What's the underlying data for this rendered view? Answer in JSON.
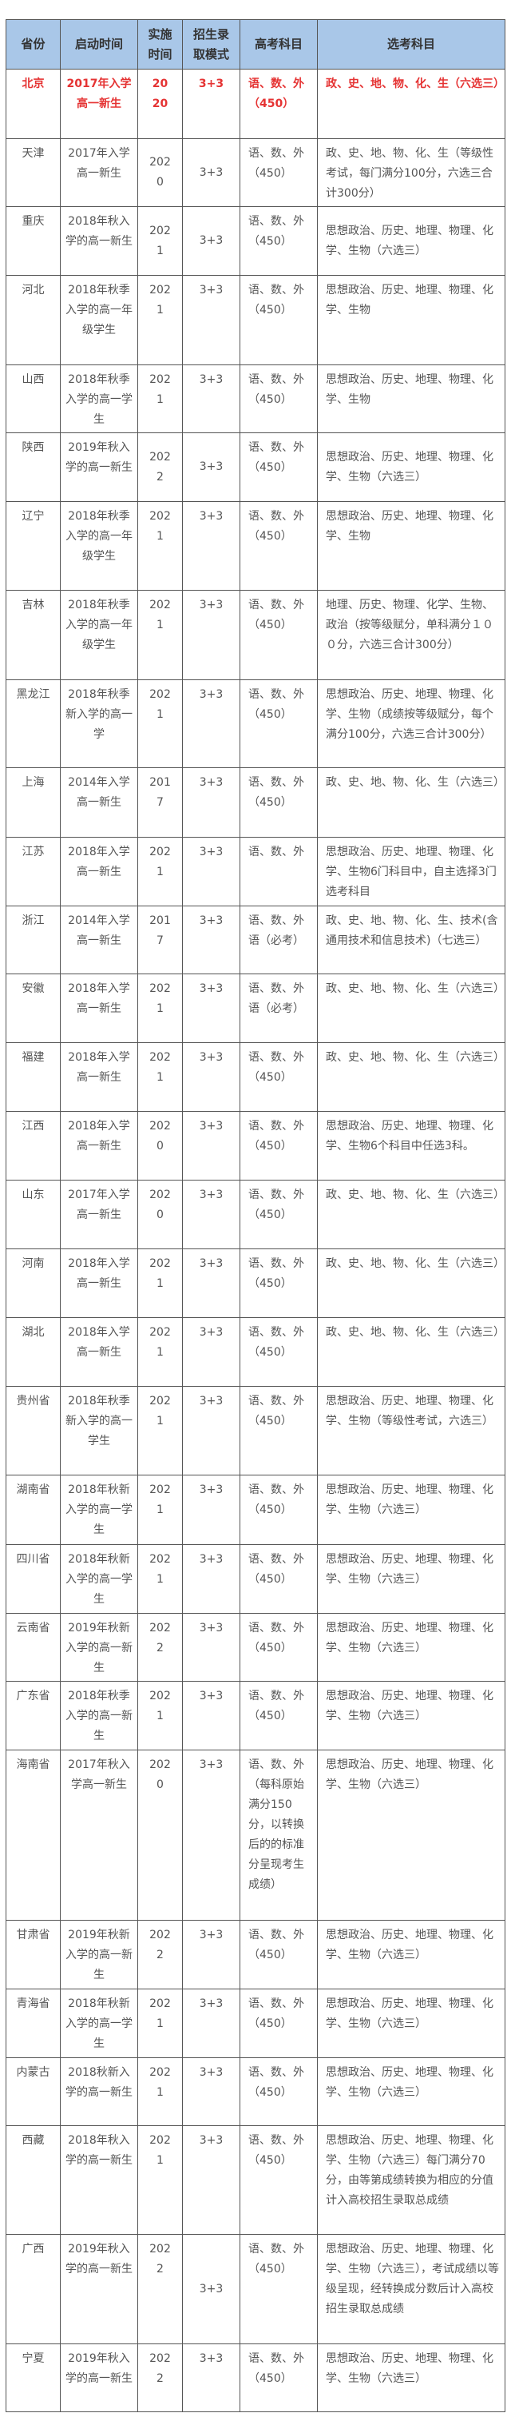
{
  "colors": {
    "header_bg": "#a9c7e8",
    "highlight": "#e53333",
    "border": "#555555"
  },
  "headers": [
    "省份",
    "启动时间",
    "实施时间",
    "招生录取模式",
    "高考科目",
    "选考科目"
  ],
  "rows": [
    [
      "北京",
      "2017年入学高一新生",
      "2020",
      "3+3",
      "语、数、外（450）",
      "政、史、地、物、化、生（六选三）"
    ],
    [
      "天津",
      "2017年入学高一新生",
      "2020",
      "3+3",
      "语、数、外（450）",
      "政、史、地、物、化、生（等级性考试，每门满分100分，六选三合计300分）"
    ],
    [
      "重庆",
      "2018年秋入学的高一新生",
      "2021",
      "3+3",
      "语、数、外（450）",
      "思想政治、历史、地理、物理、化学、生物（六选三）"
    ],
    [
      "河北",
      "2018年秋季入学的高一年级学生",
      "2021",
      "3+3",
      "语、数、外（450）",
      "思想政治、历史、地理、物理、化学、生物"
    ],
    [
      "山西",
      "2018年秋季入学的高一学生",
      "2021",
      "3+3",
      "语、数、外（450）",
      "思想政治、历史、地理、物理、化学、生物"
    ],
    [
      "陕西",
      "2019年秋入学的高一新生",
      "2022",
      "3+3",
      "语、数、外（450）",
      "思想政治、历史、地理、物理、化学、生物（六选三）"
    ],
    [
      "辽宁",
      "2018年秋季入学的高一年级学生",
      "2021",
      "3+3",
      "语、数、外（450）",
      "思想政治、历史、地理、物理、化学、生物"
    ],
    [
      "吉林",
      "2018年秋季入学的高一年级学生",
      "2021",
      "3+3",
      "语、数、外（450）",
      "地理、历史、物理、化学、生物、政治（按等级赋分，单科满分１００分，六选三合计300分）"
    ],
    [
      "黑龙江",
      "2018年秋季新入学的高一学",
      "2021",
      "3+3",
      "语、数、外（450）",
      "思想政治、历史、地理、物理、化学、生物（成绩按等级赋分，每个满分100分，六选三合计300分）"
    ],
    [
      "上海",
      "2014年入学高一新生",
      "2017",
      "3+3",
      "语、数、外（450）",
      "政、史、地、物、化、生（六选三）"
    ],
    [
      "江苏",
      "2018年入学高一新生",
      "2021",
      "3+3",
      "语、数、外",
      "思想政治、历史、地理、物理、化学、生物6门科目中，自主选择3门选考科目"
    ],
    [
      "浙江",
      "2014年入学高一新生",
      "2017",
      "3+3",
      "语、数、外语（必考）",
      "政、史、地、物、化、生、技术(含通用技术和信息技术)（七选三）"
    ],
    [
      "安徽",
      "2018年入学高一新生",
      "2021",
      "3+3",
      "语、数、外语（必考）",
      "政、史、地、物、化、生（六选三）"
    ],
    [
      "福建",
      "2018年入学高一新生",
      "2021",
      "3+3",
      "语、数、外（450）",
      "政、史、地、物、化、生（六选三）"
    ],
    [
      "江西",
      "2018年入学高一新生",
      "2020",
      "3+3",
      "语、数、外（450）",
      "思想政治、历史、地理、物理、化学、生物6个科目中任选3科。"
    ],
    [
      "山东",
      "2017年入学高一新生",
      "2020",
      "3+3",
      "语、数、外（450）",
      "政、史、地、物、化、生（六选三）"
    ],
    [
      "河南",
      "2018年入学高一新生",
      "2021",
      "3+3",
      "语、数、外（450）",
      "政、史、地、物、化、生（六选三）"
    ],
    [
      "湖北",
      "2018年入学高一新生",
      "2021",
      "3+3",
      "语、数、外（450）",
      "政、史、地、物、化、生（六选三）"
    ],
    [
      "贵州省",
      "2018年秋季新入学的高一学生",
      "2021",
      "3+3",
      "语、数、外（450）",
      "思想政治、历史、地理、物理、化学、生物（等级性考试，六选三）"
    ],
    [
      "湖南省",
      "2018年秋新入学的高一学生",
      "2021",
      "3+3",
      "语、数、外（450）",
      "思想政治、历史、地理、物理、化学、生物（六选三）"
    ],
    [
      "四川省",
      "2018年秋新入学的高一学生",
      "2021",
      "3+3",
      "语、数、外（450）",
      "思想政治、历史、地理、物理、化学、生物（六选三）"
    ],
    [
      "云南省",
      "2019年秋新入学的高一新生",
      "2022",
      "3+3",
      "语、数、外（450）",
      "思想政治、历史、地理、物理、化学、生物（六选三）"
    ],
    [
      "广东省",
      "2018年秋季入学的高一新生",
      "2021",
      "3+3",
      "语、数、外（450）",
      "思想政治、历史、地理、物理、化学、生物（六选三）"
    ],
    [
      "海南省",
      "2017年秋入学高一新生",
      "2020",
      "3+3",
      "语、数、外（每科原始满分150分，以转换后的的标准分呈现考生成绩）",
      "思想政治、历史、地理、物理、化学、生物（六选三）"
    ],
    [
      "甘肃省",
      "2019年秋新入学的高一新生",
      "2022",
      "3+3",
      "语、数、外（450）",
      "思想政治、历史、地理、物理、化学、生物（六选三）"
    ],
    [
      "青海省",
      "2018年秋新入学的高一学生",
      "2021",
      "3+3",
      "语、数、外（450）",
      "思想政治、历史、地理、物理、化学、生物（六选三）"
    ],
    [
      "内蒙古",
      "2018秋新入学的高一新生",
      "2021",
      "3+3",
      "语、数、外（450）",
      "思想政治、历史、地理、物理、化学、生物（六选三）"
    ],
    [
      "西藏",
      "2018年秋入学的高一新生",
      "2021",
      "3+3",
      "语、数、外（450）",
      "思想政治、历史、地理、物理、化学、生物（六选三）每门满分70分，由等第成绩转换为相应的分值计入高校招生录取总成绩"
    ],
    [
      "广西",
      "2019年秋入学的高一新生",
      "2022",
      "3+3",
      "语、数、外（450）",
      "思想政治、历史、地理、物理、化学、生物（六选三），考试成绩以等级呈现，经转换成分数后计入高校招生录取总成绩"
    ],
    [
      "宁夏",
      "2019年秋入学的高一新生",
      "2022",
      "3+3",
      "语、数、外（450）",
      "思想政治、历史、地理、物理、化学、生物（六选三）"
    ]
  ]
}
